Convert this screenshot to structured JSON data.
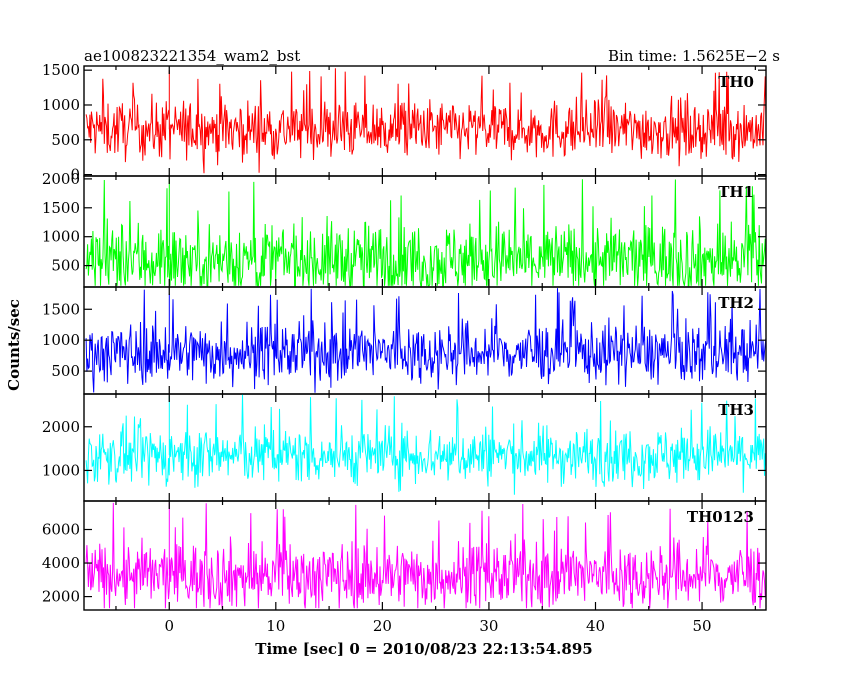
{
  "header": {
    "left_title": "ae100823221354_wam2_bst",
    "right_title": "Bin time: 1.5625E−2 s"
  },
  "axes": {
    "ylabel": "Counts/sec",
    "xlabel": "Time [sec] 0 = 2010/08/23 22:13:54.895"
  },
  "chart_data": {
    "type": "line",
    "title": "ae100823221354_wam2_bst",
    "subtitle": "Bin time: 1.5625E−2 s",
    "xlabel": "Time [sec] 0 = 2010/08/23 22:13:54.895",
    "ylabel": "Counts/sec",
    "bin_time_s": 0.015625,
    "xlim": [
      -8,
      56
    ],
    "xticks": [
      0,
      10,
      20,
      30,
      40,
      50
    ],
    "grid": false,
    "panels": [
      {
        "name": "TH0",
        "color": "#ff0000",
        "ylim": [
          -20,
          1560
        ],
        "yticks": [
          0,
          500,
          1000,
          1500
        ],
        "mean": 650,
        "min": 20,
        "max": 1550,
        "burst_peak": {
          "x": 0.0,
          "y": 1500
        }
      },
      {
        "name": "TH1",
        "color": "#00ff00",
        "ylim": [
          130,
          2050
        ],
        "yticks": [
          500,
          1000,
          1500,
          2000
        ],
        "mean": 600,
        "min": 150,
        "max": 2000,
        "burst_peak": {
          "x": 0.0,
          "y": 2000
        }
      },
      {
        "name": "TH2",
        "color": "#0000ff",
        "ylim": [
          130,
          1860
        ],
        "yticks": [
          500,
          1000,
          1500
        ],
        "mean": 800,
        "min": 150,
        "max": 1850,
        "burst_peak": {
          "x": 0.0,
          "y": 1750
        }
      },
      {
        "name": "TH3",
        "color": "#00ffff",
        "ylim": [
          300,
          2750
        ],
        "yticks": [
          1000,
          2000
        ],
        "mean": 1350,
        "min": 350,
        "max": 2750,
        "burst_peak": {
          "x": 0.0,
          "y": 2700
        }
      },
      {
        "name": "TH0123",
        "color": "#ff00ff",
        "ylim": [
          1200,
          7700
        ],
        "yticks": [
          2000,
          4000,
          6000
        ],
        "mean": 3250,
        "min": 1300,
        "max": 7600,
        "burst_peak": {
          "x": 0.0,
          "y": 7600
        }
      }
    ]
  }
}
